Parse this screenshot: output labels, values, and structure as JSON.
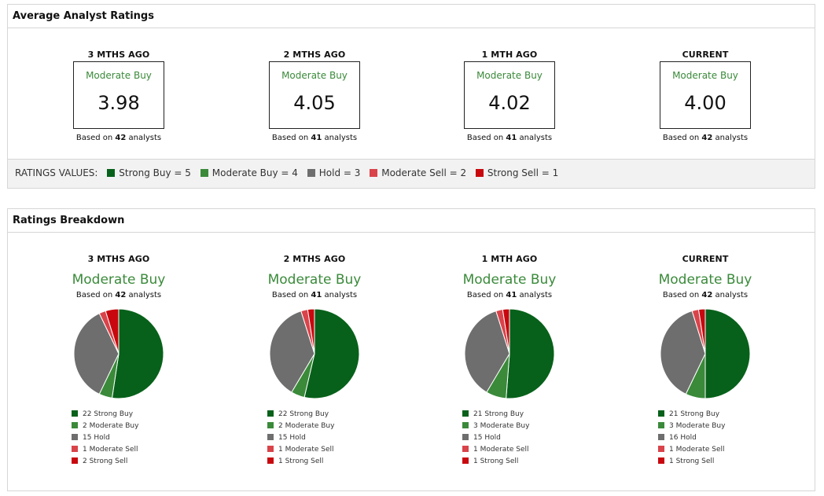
{
  "avg": {
    "title": "Average Analyst Ratings",
    "columns": [
      {
        "period": "3 MTHS AGO",
        "label": "Moderate Buy",
        "value": "3.98",
        "based_prefix": "Based on ",
        "analysts": "42",
        "based_suffix": " analysts"
      },
      {
        "period": "2 MTHS AGO",
        "label": "Moderate Buy",
        "value": "4.05",
        "based_prefix": "Based on ",
        "analysts": "41",
        "based_suffix": " analysts"
      },
      {
        "period": "1 MTH AGO",
        "label": "Moderate Buy",
        "value": "4.02",
        "based_prefix": "Based on ",
        "analysts": "41",
        "based_suffix": " analysts"
      },
      {
        "period": "CURRENT",
        "label": "Moderate Buy",
        "value": "4.00",
        "based_prefix": "Based on ",
        "analysts": "42",
        "based_suffix": " analysts"
      }
    ],
    "legend_title": "RATINGS VALUES:",
    "legend": [
      {
        "label": "Strong Buy = 5",
        "color": "#07611a"
      },
      {
        "label": "Moderate Buy = 4",
        "color": "#3a8a3a"
      },
      {
        "label": "Hold = 3",
        "color": "#6e6e6e"
      },
      {
        "label": "Moderate Sell = 2",
        "color": "#d9434a"
      },
      {
        "label": "Strong Sell = 1",
        "color": "#c8080e"
      }
    ]
  },
  "breakdown": {
    "title": "Ratings Breakdown"
  },
  "chart_data": [
    {
      "type": "pie",
      "title": "3 MTHS AGO",
      "subtitle": "Moderate Buy",
      "note_prefix": "Based on ",
      "note_count": "42",
      "note_suffix": " analysts",
      "categories": [
        "Strong Buy",
        "Moderate Buy",
        "Hold",
        "Moderate Sell",
        "Strong Sell"
      ],
      "values": [
        22,
        2,
        15,
        1,
        2
      ],
      "legend_labels": [
        "22 Strong Buy",
        "2 Moderate Buy",
        "15 Hold",
        "1 Moderate Sell",
        "2 Strong Sell"
      ],
      "colors": [
        "#07611a",
        "#3a8a3a",
        "#6e6e6e",
        "#d9434a",
        "#c8080e"
      ]
    },
    {
      "type": "pie",
      "title": "2 MTHS AGO",
      "subtitle": "Moderate Buy",
      "note_prefix": "Based on ",
      "note_count": "41",
      "note_suffix": " analysts",
      "categories": [
        "Strong Buy",
        "Moderate Buy",
        "Hold",
        "Moderate Sell",
        "Strong Sell"
      ],
      "values": [
        22,
        2,
        15,
        1,
        1
      ],
      "legend_labels": [
        "22 Strong Buy",
        "2 Moderate Buy",
        "15 Hold",
        "1 Moderate Sell",
        "1 Strong Sell"
      ],
      "colors": [
        "#07611a",
        "#3a8a3a",
        "#6e6e6e",
        "#d9434a",
        "#c8080e"
      ]
    },
    {
      "type": "pie",
      "title": "1 MTH AGO",
      "subtitle": "Moderate Buy",
      "note_prefix": "Based on ",
      "note_count": "41",
      "note_suffix": " analysts",
      "categories": [
        "Strong Buy",
        "Moderate Buy",
        "Hold",
        "Moderate Sell",
        "Strong Sell"
      ],
      "values": [
        21,
        3,
        15,
        1,
        1
      ],
      "legend_labels": [
        "21 Strong Buy",
        "3 Moderate Buy",
        "15 Hold",
        "1 Moderate Sell",
        "1 Strong Sell"
      ],
      "colors": [
        "#07611a",
        "#3a8a3a",
        "#6e6e6e",
        "#d9434a",
        "#c8080e"
      ]
    },
    {
      "type": "pie",
      "title": "CURRENT",
      "subtitle": "Moderate Buy",
      "note_prefix": "Based on ",
      "note_count": "42",
      "note_suffix": " analysts",
      "categories": [
        "Strong Buy",
        "Moderate Buy",
        "Hold",
        "Moderate Sell",
        "Strong Sell"
      ],
      "values": [
        21,
        3,
        16,
        1,
        1
      ],
      "legend_labels": [
        "21 Strong Buy",
        "3 Moderate Buy",
        "16 Hold",
        "1 Moderate Sell",
        "1 Strong Sell"
      ],
      "colors": [
        "#07611a",
        "#3a8a3a",
        "#6e6e6e",
        "#d9434a",
        "#c8080e"
      ]
    }
  ]
}
